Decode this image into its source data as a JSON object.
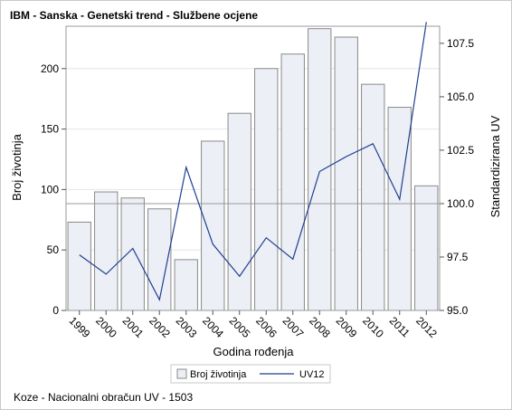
{
  "title": "IBM - Sanska - Genetski trend - Službene ocjene",
  "footnote": "Koze - Nacionalni obračun UV - 1503",
  "colors": {
    "bar_fill": "#eceff5",
    "bar_stroke": "#8a8a8a",
    "line": "#1f3f91",
    "grid": "#e6e6e6",
    "frame": "#999999",
    "refline": "#999999"
  },
  "chart_data": {
    "type": "bar",
    "title": "IBM - Sanska - Genetski trend - Službene ocjene",
    "xlabel": "Godina rođenja",
    "ylabel": "Broj životinja",
    "y2label": "Standardizirana UV",
    "categories": [
      "1999",
      "2000",
      "2001",
      "2002",
      "2003",
      "2004",
      "2005",
      "2006",
      "2007",
      "2008",
      "2009",
      "2010",
      "2011",
      "2012"
    ],
    "ylim": [
      0,
      235
    ],
    "y_ticks": [
      0,
      50,
      100,
      150,
      200
    ],
    "y2lim": [
      95.0,
      108.3
    ],
    "y2_ticks": [
      "95.0",
      "97.5",
      "100.0",
      "102.5",
      "105.0",
      "107.5"
    ],
    "reference_line_y2": 100.0,
    "grid": true,
    "legend_position": "bottom",
    "series": [
      {
        "name": "Broj životinja",
        "type": "bar",
        "axis": "left",
        "values": [
          73,
          98,
          93,
          84,
          42,
          140,
          163,
          200,
          212,
          233,
          226,
          187,
          168,
          103
        ]
      },
      {
        "name": "UV12",
        "type": "line",
        "axis": "right",
        "values": [
          97.6,
          96.7,
          97.9,
          95.5,
          101.7,
          98.1,
          96.6,
          98.4,
          97.4,
          101.5,
          102.2,
          102.8,
          100.2,
          108.5
        ]
      }
    ]
  }
}
